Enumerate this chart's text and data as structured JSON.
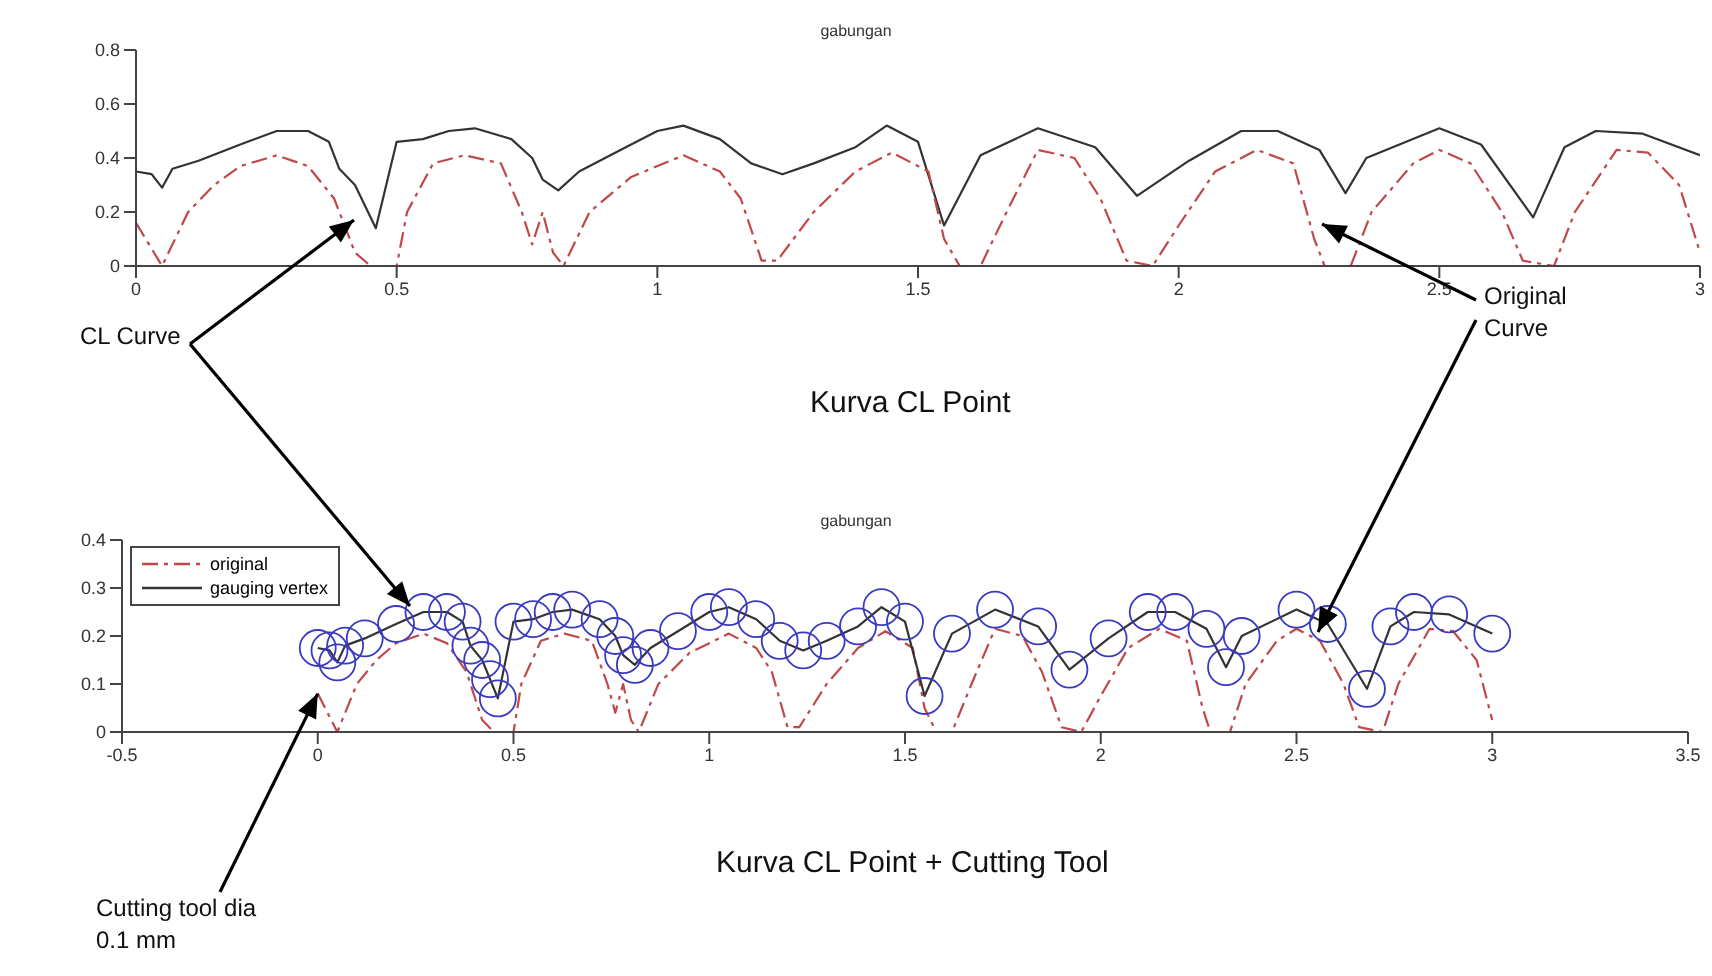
{
  "chart_data": [
    {
      "type": "line",
      "title": "gabungan",
      "xlim": [
        0,
        3
      ],
      "xticks": [
        0,
        0.5,
        1,
        1.5,
        2,
        2.5,
        3
      ],
      "ylim": [
        0,
        0.8
      ],
      "yticks": [
        0,
        0.2,
        0.4,
        0.6,
        0.8
      ],
      "annotations": [
        "CL Curve",
        "Original Curve",
        "Kurva CL Point"
      ],
      "series": [
        {
          "color": "#333333",
          "line_style": "solid",
          "x": [
            0,
            0.03,
            0.05,
            0.07,
            0.12,
            0.2,
            0.27,
            0.33,
            0.37,
            0.39,
            0.42,
            0.44,
            0.46,
            0.5,
            0.55,
            0.6,
            0.65,
            0.72,
            0.76,
            0.78,
            0.81,
            0.85,
            0.92,
            1,
            1.05,
            1.12,
            1.18,
            1.24,
            1.3,
            1.38,
            1.44,
            1.5,
            1.55,
            1.62,
            1.73,
            1.84,
            1.92,
            2.02,
            2.12,
            2.19,
            2.27,
            2.32,
            2.36,
            2.5,
            2.58,
            2.68,
            2.74,
            2.8,
            2.89,
            3
          ],
          "values": [
            0.35,
            0.34,
            0.29,
            0.36,
            0.39,
            0.45,
            0.5,
            0.5,
            0.46,
            0.36,
            0.3,
            0.22,
            0.14,
            0.46,
            0.47,
            0.5,
            0.51,
            0.47,
            0.4,
            0.32,
            0.28,
            0.35,
            0.42,
            0.5,
            0.52,
            0.47,
            0.38,
            0.34,
            0.38,
            0.44,
            0.52,
            0.46,
            0.15,
            0.41,
            0.51,
            0.44,
            0.26,
            0.39,
            0.5,
            0.5,
            0.43,
            0.27,
            0.4,
            0.51,
            0.45,
            0.18,
            0.44,
            0.5,
            0.49,
            0.41
          ]
        },
        {
          "color": "#c04848",
          "line_style": "dashed",
          "x": [
            0,
            0.05,
            0.1,
            0.15,
            0.2,
            0.27,
            0.33,
            0.38,
            0.42,
            0.45,
            0.5,
            0.52,
            0.57,
            0.63,
            0.7,
            0.74,
            0.76,
            0.78,
            0.8,
            0.82,
            0.87,
            0.95,
            1.05,
            1.12,
            1.16,
            1.2,
            1.23,
            1.3,
            1.38,
            1.45,
            1.52,
            1.55,
            1.58,
            1.62,
            1.67,
            1.73,
            1.8,
            1.85,
            1.9,
            1.95,
            2,
            2.07,
            2.15,
            2.22,
            2.26,
            2.28,
            2.33,
            2.37,
            2.45,
            2.5,
            2.56,
            2.62,
            2.66,
            2.72,
            2.76,
            2.84,
            2.9,
            2.96,
            3
          ],
          "values": [
            0.16,
            0,
            0.2,
            0.3,
            0.37,
            0.41,
            0.37,
            0.25,
            0.05,
            0,
            0,
            0.2,
            0.38,
            0.41,
            0.38,
            0.2,
            0.08,
            0.2,
            0.05,
            0,
            0.2,
            0.33,
            0.41,
            0.35,
            0.25,
            0.02,
            0.02,
            0.2,
            0.35,
            0.42,
            0.35,
            0.1,
            0,
            0,
            0.2,
            0.43,
            0.4,
            0.25,
            0.02,
            0,
            0.15,
            0.35,
            0.43,
            0.38,
            0.1,
            0,
            0,
            0.2,
            0.38,
            0.43,
            0.38,
            0.2,
            0.02,
            0,
            0.2,
            0.43,
            0.42,
            0.3,
            0.05
          ]
        }
      ]
    },
    {
      "type": "line",
      "title": "gabungan",
      "xlim": [
        -0.5,
        3.5
      ],
      "xticks": [
        -0.5,
        0,
        0.5,
        1,
        1.5,
        2,
        2.5,
        3,
        3.5
      ],
      "ylim": [
        0,
        0.4
      ],
      "yticks": [
        0,
        0.1,
        0.2,
        0.3,
        0.4
      ],
      "legend": "top left",
      "annotations": [
        "Kurva CL Point + Cutting Tool",
        {
          "text": "Cutting tool dia 0.1 mm",
          "x": 0,
          "y": 0.08
        }
      ],
      "series": [
        {
          "name": "original",
          "color": "#c04848",
          "line_style": "dashed",
          "x": [
            0,
            0.05,
            0.1,
            0.15,
            0.2,
            0.27,
            0.33,
            0.38,
            0.42,
            0.45,
            0.5,
            0.52,
            0.57,
            0.63,
            0.7,
            0.74,
            0.76,
            0.78,
            0.8,
            0.82,
            0.87,
            0.95,
            1.05,
            1.12,
            1.16,
            1.2,
            1.23,
            1.3,
            1.38,
            1.45,
            1.52,
            1.55,
            1.58,
            1.62,
            1.67,
            1.73,
            1.8,
            1.85,
            1.9,
            1.95,
            2,
            2.07,
            2.15,
            2.22,
            2.26,
            2.28,
            2.33,
            2.37,
            2.45,
            2.5,
            2.56,
            2.62,
            2.66,
            2.72,
            2.76,
            2.84,
            2.9,
            2.96,
            3
          ],
          "values": [
            0.08,
            0,
            0.1,
            0.15,
            0.185,
            0.205,
            0.185,
            0.125,
            0.025,
            0,
            0,
            0.1,
            0.19,
            0.205,
            0.19,
            0.1,
            0.04,
            0.1,
            0.025,
            0,
            0.1,
            0.165,
            0.205,
            0.175,
            0.125,
            0.01,
            0.01,
            0.1,
            0.175,
            0.21,
            0.175,
            0.05,
            0,
            0,
            0.1,
            0.215,
            0.2,
            0.125,
            0.01,
            0,
            0.075,
            0.175,
            0.215,
            0.19,
            0.05,
            0,
            0,
            0.1,
            0.19,
            0.215,
            0.19,
            0.1,
            0.01,
            0,
            0.1,
            0.215,
            0.21,
            0.15,
            0.025
          ]
        },
        {
          "name": "gauging vertex",
          "color": "#333333",
          "line_style": "solid",
          "x": [
            0,
            0.03,
            0.05,
            0.07,
            0.12,
            0.2,
            0.27,
            0.33,
            0.37,
            0.39,
            0.42,
            0.44,
            0.46,
            0.5,
            0.55,
            0.6,
            0.65,
            0.72,
            0.76,
            0.78,
            0.81,
            0.85,
            0.92,
            1,
            1.05,
            1.12,
            1.18,
            1.24,
            1.3,
            1.38,
            1.44,
            1.5,
            1.55,
            1.62,
            1.73,
            1.84,
            1.92,
            2.02,
            2.12,
            2.19,
            2.27,
            2.32,
            2.36,
            2.5,
            2.58,
            2.68,
            2.74,
            2.8,
            2.89,
            3
          ],
          "values": [
            0.175,
            0.17,
            0.145,
            0.18,
            0.195,
            0.225,
            0.25,
            0.25,
            0.23,
            0.18,
            0.15,
            0.11,
            0.07,
            0.23,
            0.235,
            0.25,
            0.255,
            0.235,
            0.2,
            0.16,
            0.14,
            0.175,
            0.21,
            0.25,
            0.26,
            0.235,
            0.19,
            0.17,
            0.19,
            0.22,
            0.26,
            0.23,
            0.075,
            0.205,
            0.255,
            0.22,
            0.13,
            0.195,
            0.25,
            0.25,
            0.215,
            0.135,
            0.2,
            0.255,
            0.225,
            0.09,
            0.22,
            0.25,
            0.245,
            0.205
          ]
        },
        {
          "type": "scatter",
          "color": "#3a3ac0",
          "marker": "circle",
          "x": [
            0,
            0.03,
            0.05,
            0.07,
            0.12,
            0.2,
            0.27,
            0.33,
            0.37,
            0.39,
            0.42,
            0.44,
            0.46,
            0.5,
            0.55,
            0.6,
            0.65,
            0.72,
            0.76,
            0.78,
            0.81,
            0.85,
            0.92,
            1,
            1.05,
            1.12,
            1.18,
            1.24,
            1.3,
            1.38,
            1.44,
            1.5,
            1.55,
            1.62,
            1.73,
            1.84,
            1.92,
            2.02,
            2.12,
            2.19,
            2.27,
            2.32,
            2.36,
            2.5,
            2.58,
            2.68,
            2.74,
            2.8,
            2.89,
            3
          ],
          "values": [
            0.175,
            0.17,
            0.145,
            0.18,
            0.195,
            0.225,
            0.25,
            0.25,
            0.23,
            0.18,
            0.15,
            0.11,
            0.07,
            0.23,
            0.235,
            0.25,
            0.255,
            0.235,
            0.2,
            0.16,
            0.14,
            0.175,
            0.21,
            0.25,
            0.26,
            0.235,
            0.19,
            0.17,
            0.19,
            0.22,
            0.26,
            0.23,
            0.075,
            0.205,
            0.255,
            0.22,
            0.13,
            0.195,
            0.25,
            0.25,
            0.215,
            0.135,
            0.2,
            0.255,
            0.225,
            0.09,
            0.22,
            0.25,
            0.245,
            0.205
          ]
        }
      ]
    }
  ]
}
